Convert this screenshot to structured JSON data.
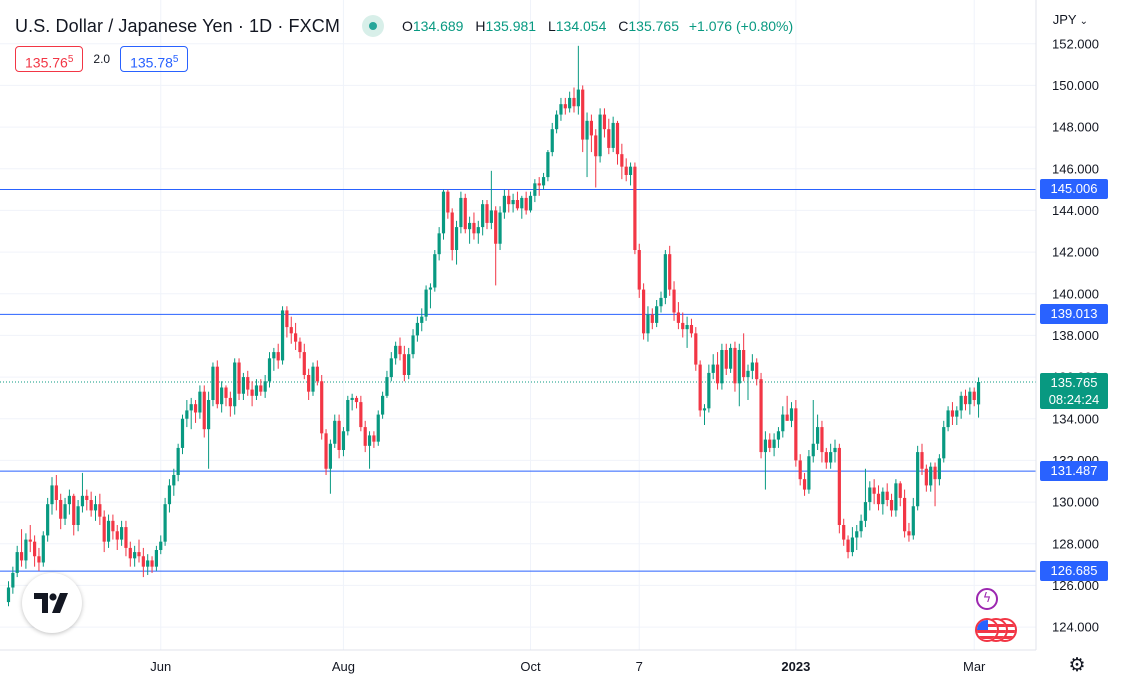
{
  "header": {
    "title": "U.S. Dollar / Japanese Yen · 1D · FXCM",
    "ohlc": {
      "open_label": "O",
      "open": "134.689",
      "high_label": "H",
      "high": "135.981",
      "low_label": "L",
      "low": "134.054",
      "close_label": "C",
      "close": "135.765",
      "change": "+1.076 (+0.80%)"
    }
  },
  "quote": {
    "sell_main": "135.76",
    "sell_pip": "5",
    "spread": "2.0",
    "buy_main": "135.78",
    "buy_pip": "5"
  },
  "currency": {
    "label": "JPY",
    "icon": "chevron-down-icon"
  },
  "countdown": "08:24:24",
  "colors": {
    "up": "#089981",
    "down": "#f23645",
    "line": "#2962ff",
    "grid": "#f0f3fa"
  },
  "chart_data": {
    "type": "candlestick",
    "title": "U.S. Dollar / Japanese Yen · 1D · FXCM",
    "ylim": [
      122.9,
      154.1
    ],
    "y_ticks": [
      124,
      126,
      128,
      130,
      132,
      134,
      136,
      138,
      140,
      142,
      144,
      146,
      148,
      150,
      152
    ],
    "x_ticks": [
      {
        "label": "Jun",
        "index": 35,
        "bold": false
      },
      {
        "label": "Aug",
        "index": 77,
        "bold": false
      },
      {
        "label": "Oct",
        "index": 120,
        "bold": false
      },
      {
        "label": "7",
        "index": 145,
        "bold": false
      },
      {
        "label": "2023",
        "index": 181,
        "bold": true
      },
      {
        "label": "Mar",
        "index": 222,
        "bold": false
      }
    ],
    "last_price": 135.765,
    "last_price_label": "135.765",
    "horizontal_lines": [
      {
        "value": 145.006,
        "label": "145.006"
      },
      {
        "value": 139.013,
        "label": "139.013"
      },
      {
        "value": 131.487,
        "label": "131.487"
      },
      {
        "value": 126.685,
        "label": "126.685"
      }
    ],
    "candles": [
      [
        125.2,
        126.2,
        125,
        125.9
      ],
      [
        125.9,
        126.9,
        125.6,
        126.6
      ],
      [
        126.6,
        127.9,
        126.4,
        127.6
      ],
      [
        127.6,
        128.7,
        126.9,
        127.2
      ],
      [
        127.2,
        128.5,
        126.8,
        128.2
      ],
      [
        128.2,
        128.9,
        127.6,
        128.1
      ],
      [
        128.1,
        128.4,
        126.9,
        127.4
      ],
      [
        127.4,
        127.8,
        126.7,
        127.1
      ],
      [
        127.1,
        128.6,
        126.9,
        128.4
      ],
      [
        128.4,
        130.2,
        128.1,
        129.9
      ],
      [
        129.9,
        131.2,
        129.4,
        130.8
      ],
      [
        130.8,
        131.3,
        129.6,
        130.1
      ],
      [
        130.1,
        130.4,
        128.7,
        129.2
      ],
      [
        129.2,
        130.2,
        128.9,
        129.9
      ],
      [
        129.9,
        130.6,
        129.4,
        130.3
      ],
      [
        130.3,
        130.4,
        128.4,
        128.9
      ],
      [
        128.9,
        130.1,
        128.6,
        129.8
      ],
      [
        129.8,
        131.4,
        129.5,
        130.3
      ],
      [
        130.3,
        130.6,
        129.6,
        130.1
      ],
      [
        130.1,
        130.5,
        129.3,
        129.6
      ],
      [
        129.6,
        130.3,
        129.1,
        129.9
      ],
      [
        129.9,
        130.4,
        128.9,
        129.3
      ],
      [
        129.3,
        129.6,
        127.6,
        128.1
      ],
      [
        128.1,
        129.4,
        127.8,
        129.1
      ],
      [
        129.1,
        129.4,
        128.2,
        128.6
      ],
      [
        128.6,
        128.9,
        127.7,
        128.2
      ],
      [
        128.2,
        129.1,
        127.9,
        128.8
      ],
      [
        128.8,
        129.1,
        127.4,
        127.8
      ],
      [
        127.8,
        128.1,
        126.9,
        127.3
      ],
      [
        127.3,
        127.9,
        126.9,
        127.6
      ],
      [
        127.6,
        128.2,
        127.1,
        127.4
      ],
      [
        127.4,
        127.8,
        126.4,
        126.9
      ],
      [
        126.9,
        127.5,
        126.5,
        127.2
      ],
      [
        127.2,
        127.4,
        126.6,
        126.9
      ],
      [
        126.9,
        127.9,
        126.7,
        127.7
      ],
      [
        127.7,
        128.4,
        127.5,
        128.1
      ],
      [
        128.1,
        130.2,
        127.9,
        129.9
      ],
      [
        129.9,
        131.1,
        129.5,
        130.8
      ],
      [
        130.8,
        131.6,
        130.3,
        131.3
      ],
      [
        131.3,
        132.8,
        131.0,
        132.6
      ],
      [
        132.6,
        134.2,
        132.3,
        134.0
      ],
      [
        134.0,
        134.9,
        133.6,
        134.4
      ],
      [
        134.4,
        135.0,
        133.5,
        134.7
      ],
      [
        134.7,
        134.9,
        133.8,
        134.3
      ],
      [
        134.3,
        135.6,
        134.0,
        135.3
      ],
      [
        135.3,
        135.6,
        133.1,
        133.5
      ],
      [
        133.5,
        135.3,
        131.6,
        134.9
      ],
      [
        134.9,
        136.7,
        134.6,
        136.5
      ],
      [
        136.5,
        136.8,
        134.5,
        134.7
      ],
      [
        134.7,
        135.8,
        134.3,
        135.5
      ],
      [
        135.5,
        135.6,
        134.6,
        135.0
      ],
      [
        135.0,
        135.3,
        134.1,
        134.6
      ],
      [
        134.6,
        136.9,
        134.2,
        136.7
      ],
      [
        136.7,
        136.9,
        134.9,
        135.2
      ],
      [
        135.2,
        136.2,
        134.9,
        136.0
      ],
      [
        136.0,
        136.3,
        135.1,
        135.4
      ],
      [
        135.4,
        135.8,
        134.6,
        135.1
      ],
      [
        135.1,
        135.9,
        134.9,
        135.6
      ],
      [
        135.6,
        135.9,
        135.1,
        135.3
      ],
      [
        135.3,
        136.1,
        135.0,
        135.8
      ],
      [
        135.8,
        137.2,
        135.5,
        136.9
      ],
      [
        136.9,
        137.4,
        136.3,
        137.2
      ],
      [
        137.2,
        137.6,
        136.4,
        136.8
      ],
      [
        136.8,
        139.4,
        136.6,
        139.2
      ],
      [
        139.2,
        139.4,
        137.9,
        138.4
      ],
      [
        138.4,
        138.9,
        137.6,
        138.1
      ],
      [
        138.1,
        138.6,
        137.3,
        137.7
      ],
      [
        137.7,
        137.9,
        136.9,
        137.2
      ],
      [
        137.2,
        137.6,
        135.9,
        136.1
      ],
      [
        136.1,
        136.4,
        134.9,
        135.3
      ],
      [
        135.3,
        136.7,
        135.1,
        136.5
      ],
      [
        136.5,
        136.8,
        135.6,
        135.8
      ],
      [
        135.8,
        136.1,
        133.0,
        133.3
      ],
      [
        133.3,
        133.5,
        131.3,
        131.6
      ],
      [
        131.6,
        133.0,
        130.4,
        132.8
      ],
      [
        132.8,
        134.2,
        132.6,
        133.9
      ],
      [
        133.9,
        134.2,
        132.1,
        132.5
      ],
      [
        132.5,
        133.6,
        132.2,
        133.4
      ],
      [
        133.4,
        135.1,
        133.2,
        134.9
      ],
      [
        134.9,
        135.2,
        134.4,
        135.0
      ],
      [
        135.0,
        135.1,
        134.5,
        134.8
      ],
      [
        134.8,
        135.1,
        133.4,
        133.6
      ],
      [
        133.6,
        133.9,
        132.4,
        132.7
      ],
      [
        132.7,
        133.4,
        131.6,
        133.2
      ],
      [
        133.2,
        133.4,
        132.6,
        132.9
      ],
      [
        132.9,
        134.4,
        132.7,
        134.2
      ],
      [
        134.2,
        135.3,
        134.0,
        135.1
      ],
      [
        135.1,
        136.3,
        135.0,
        136.0
      ],
      [
        136.0,
        137.2,
        135.8,
        136.9
      ],
      [
        136.9,
        137.7,
        136.6,
        137.5
      ],
      [
        137.5,
        137.9,
        136.8,
        137.1
      ],
      [
        137.1,
        137.5,
        135.8,
        136.1
      ],
      [
        136.1,
        137.4,
        135.9,
        137.1
      ],
      [
        137.1,
        138.3,
        136.9,
        138.0
      ],
      [
        138.0,
        138.9,
        137.7,
        138.6
      ],
      [
        138.6,
        139.3,
        138.2,
        138.9
      ],
      [
        138.9,
        140.4,
        138.7,
        140.2
      ],
      [
        140.2,
        140.5,
        139.3,
        140.3
      ],
      [
        140.3,
        142.1,
        140.1,
        141.9
      ],
      [
        141.9,
        143.2,
        141.6,
        142.9
      ],
      [
        142.9,
        145.0,
        142.6,
        144.9
      ],
      [
        144.9,
        145.0,
        143.6,
        143.9
      ],
      [
        143.9,
        144.1,
        141.6,
        142.1
      ],
      [
        142.1,
        143.5,
        141.4,
        143.2
      ],
      [
        143.2,
        144.9,
        142.9,
        144.6
      ],
      [
        144.6,
        144.8,
        142.9,
        143.1
      ],
      [
        143.1,
        143.7,
        142.4,
        143.4
      ],
      [
        143.4,
        143.9,
        142.6,
        142.9
      ],
      [
        142.9,
        143.5,
        142.4,
        143.2
      ],
      [
        143.2,
        144.5,
        142.8,
        144.3
      ],
      [
        144.3,
        144.5,
        143.1,
        143.4
      ],
      [
        143.4,
        145.9,
        143.1,
        144.0
      ],
      [
        144.0,
        144.2,
        140.4,
        142.4
      ],
      [
        142.4,
        144.2,
        142.1,
        143.9
      ],
      [
        143.9,
        145.0,
        143.6,
        144.7
      ],
      [
        144.7,
        145.0,
        143.9,
        144.3
      ],
      [
        144.3,
        144.8,
        143.9,
        144.5
      ],
      [
        144.5,
        144.9,
        144.0,
        144.1
      ],
      [
        144.1,
        144.7,
        143.6,
        144.6
      ],
      [
        144.6,
        144.9,
        143.8,
        144.0
      ],
      [
        144.0,
        144.9,
        143.9,
        144.7
      ],
      [
        144.7,
        145.5,
        144.4,
        145.3
      ],
      [
        145.3,
        145.6,
        144.7,
        145.2
      ],
      [
        145.2,
        145.8,
        145.0,
        145.6
      ],
      [
        145.6,
        146.9,
        145.4,
        146.8
      ],
      [
        146.8,
        148.2,
        146.6,
        147.9
      ],
      [
        147.9,
        148.8,
        147.7,
        148.6
      ],
      [
        148.6,
        149.4,
        148.3,
        149.1
      ],
      [
        149.1,
        149.4,
        148.6,
        148.9
      ],
      [
        148.9,
        149.7,
        148.7,
        149.4
      ],
      [
        149.4,
        149.9,
        148.7,
        149.0
      ],
      [
        149.0,
        151.9,
        148.6,
        149.8
      ],
      [
        149.8,
        150.0,
        146.8,
        147.4
      ],
      [
        147.4,
        148.7,
        145.6,
        148.3
      ],
      [
        148.3,
        148.6,
        146.8,
        147.6
      ],
      [
        147.6,
        147.9,
        145.1,
        146.6
      ],
      [
        146.6,
        148.9,
        146.3,
        148.6
      ],
      [
        148.6,
        148.9,
        147.5,
        147.9
      ],
      [
        147.9,
        148.4,
        146.7,
        147.0
      ],
      [
        147.0,
        148.5,
        146.8,
        148.2
      ],
      [
        148.2,
        148.3,
        146.2,
        146.7
      ],
      [
        146.7,
        147.2,
        145.5,
        146.1
      ],
      [
        146.1,
        146.5,
        145.4,
        145.7
      ],
      [
        145.7,
        146.3,
        145.2,
        146.1
      ],
      [
        146.1,
        146.3,
        141.9,
        142.1
      ],
      [
        142.1,
        142.4,
        139.8,
        140.2
      ],
      [
        140.2,
        140.5,
        137.8,
        138.1
      ],
      [
        138.1,
        139.4,
        137.7,
        139.0
      ],
      [
        139.0,
        139.3,
        138.3,
        138.6
      ],
      [
        138.6,
        139.7,
        138.4,
        139.4
      ],
      [
        139.4,
        140.1,
        139.1,
        139.8
      ],
      [
        139.8,
        142.1,
        139.5,
        141.9
      ],
      [
        141.9,
        142.3,
        139.9,
        140.2
      ],
      [
        140.2,
        140.6,
        138.7,
        139.1
      ],
      [
        139.1,
        139.6,
        138.3,
        138.6
      ],
      [
        138.6,
        139.1,
        137.9,
        138.3
      ],
      [
        138.3,
        138.9,
        137.4,
        138.5
      ],
      [
        138.5,
        138.8,
        137.9,
        138.1
      ],
      [
        138.1,
        138.4,
        136.3,
        136.6
      ],
      [
        136.6,
        136.8,
        134.1,
        134.4
      ],
      [
        134.4,
        134.7,
        133.7,
        134.5
      ],
      [
        134.5,
        136.6,
        134.3,
        136.2
      ],
      [
        136.2,
        137.1,
        135.9,
        136.6
      ],
      [
        136.6,
        137.2,
        135.4,
        135.7
      ],
      [
        135.7,
        137.6,
        135.4,
        137.3
      ],
      [
        137.3,
        137.6,
        136.1,
        136.4
      ],
      [
        136.4,
        137.6,
        136.2,
        137.4
      ],
      [
        137.4,
        137.7,
        135.3,
        135.7
      ],
      [
        135.7,
        137.6,
        134.6,
        137.3
      ],
      [
        137.3,
        138.1,
        135.8,
        136.0
      ],
      [
        136.0,
        136.6,
        134.9,
        136.3
      ],
      [
        136.3,
        137.1,
        135.9,
        136.7
      ],
      [
        136.7,
        136.9,
        135.6,
        135.9
      ],
      [
        135.9,
        136.2,
        132.1,
        132.4
      ],
      [
        132.4,
        133.4,
        130.6,
        133.0
      ],
      [
        133.0,
        133.3,
        132.4,
        132.6
      ],
      [
        132.6,
        133.3,
        132.2,
        133.0
      ],
      [
        133.0,
        133.6,
        132.6,
        133.4
      ],
      [
        133.4,
        134.6,
        133.1,
        134.2
      ],
      [
        134.2,
        135.1,
        133.9,
        133.9
      ],
      [
        133.9,
        134.8,
        133.6,
        134.5
      ],
      [
        134.5,
        134.9,
        131.7,
        132.0
      ],
      [
        132.0,
        132.3,
        130.8,
        131.1
      ],
      [
        131.1,
        131.4,
        130.3,
        130.6
      ],
      [
        130.6,
        132.5,
        130.4,
        132.2
      ],
      [
        132.2,
        134.9,
        131.9,
        132.8
      ],
      [
        132.8,
        134.2,
        132.5,
        133.6
      ],
      [
        133.6,
        133.9,
        131.9,
        132.4
      ],
      [
        132.4,
        132.6,
        131.6,
        131.9
      ],
      [
        131.9,
        132.8,
        131.6,
        132.4
      ],
      [
        132.4,
        133.0,
        131.9,
        132.6
      ],
      [
        132.6,
        132.8,
        128.5,
        128.9
      ],
      [
        128.9,
        129.2,
        127.9,
        128.2
      ],
      [
        128.2,
        128.4,
        127.3,
        127.6
      ],
      [
        127.6,
        128.8,
        127.4,
        128.3
      ],
      [
        128.3,
        128.9,
        127.7,
        128.6
      ],
      [
        128.6,
        129.4,
        128.3,
        129.1
      ],
      [
        129.1,
        131.6,
        128.8,
        130.0
      ],
      [
        130.0,
        131.0,
        129.6,
        130.7
      ],
      [
        130.7,
        131.1,
        129.9,
        130.4
      ],
      [
        130.4,
        130.8,
        129.6,
        129.9
      ],
      [
        129.9,
        130.7,
        129.4,
        130.5
      ],
      [
        130.5,
        130.9,
        129.8,
        130.1
      ],
      [
        130.1,
        130.4,
        129.3,
        129.6
      ],
      [
        129.6,
        131.1,
        129.3,
        130.9
      ],
      [
        130.9,
        131.0,
        129.8,
        130.2
      ],
      [
        130.2,
        130.6,
        128.3,
        128.6
      ],
      [
        128.6,
        129.0,
        128.1,
        128.4
      ],
      [
        128.4,
        130.2,
        128.2,
        129.8
      ],
      [
        129.8,
        132.7,
        129.6,
        132.4
      ],
      [
        132.4,
        132.8,
        131.3,
        131.6
      ],
      [
        131.6,
        131.8,
        130.5,
        130.8
      ],
      [
        130.8,
        131.9,
        130.5,
        131.7
      ],
      [
        131.7,
        131.9,
        129.8,
        131.1
      ],
      [
        131.1,
        132.3,
        130.8,
        132.1
      ],
      [
        132.1,
        133.9,
        131.9,
        133.6
      ],
      [
        133.6,
        134.6,
        133.4,
        134.4
      ],
      [
        134.4,
        134.8,
        133.7,
        134.1
      ],
      [
        134.1,
        134.6,
        133.7,
        134.4
      ],
      [
        134.4,
        135.3,
        134.0,
        135.1
      ],
      [
        135.1,
        135.4,
        134.4,
        134.7
      ],
      [
        134.7,
        135.5,
        134.2,
        135.3
      ],
      [
        135.3,
        135.5,
        134.6,
        134.9
      ],
      [
        134.689,
        135.981,
        134.054,
        135.765
      ]
    ]
  },
  "icons": {
    "logo": "tradingview-logo-icon",
    "events": "lightning-icon",
    "flags": "us-flag-icon",
    "settings": "gear-icon"
  }
}
